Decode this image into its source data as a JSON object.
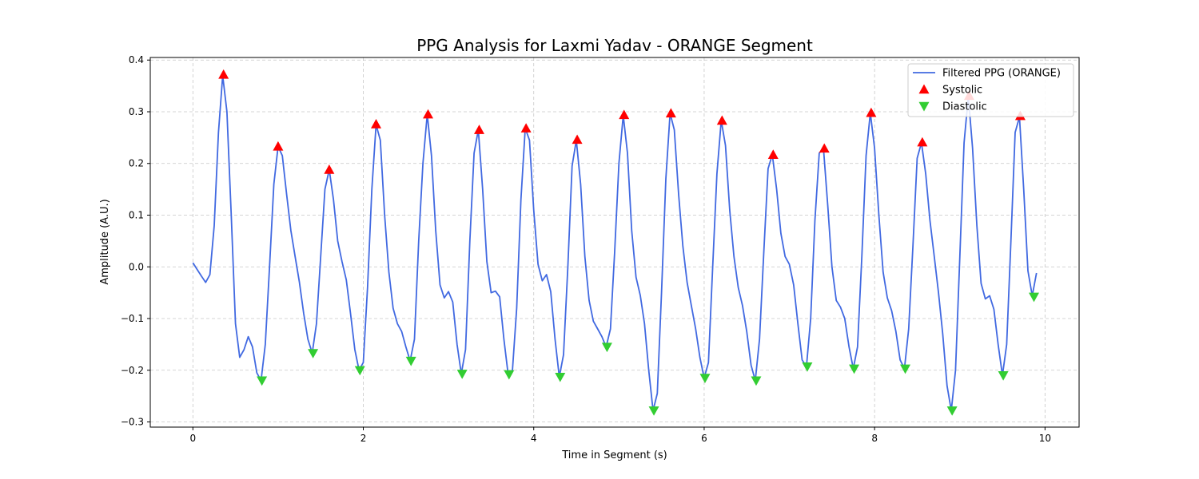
{
  "chart_data": {
    "type": "line",
    "title": "PPG Analysis for Laxmi Yadav - ORANGE Segment",
    "xlabel": "Time in Segment (s)",
    "ylabel": "Amplitude (A.U.)",
    "xlim": [
      -0.5,
      10.4
    ],
    "ylim": [
      -0.31,
      0.405
    ],
    "xticks": [
      0,
      2,
      4,
      6,
      8,
      10
    ],
    "xtick_labels": [
      "0",
      "2",
      "4",
      "6",
      "8",
      "10"
    ],
    "yticks": [
      -0.3,
      -0.2,
      -0.1,
      0.0,
      0.1,
      0.2,
      0.3,
      0.4
    ],
    "ytick_labels": [
      "−0.3",
      "−0.2",
      "−0.1",
      "0.0",
      "0.1",
      "0.2",
      "0.3",
      "0.4"
    ],
    "grid": true,
    "legend_position": "top-right",
    "colors": {
      "line": "#4169e1",
      "systolic": "#ff0000",
      "diastolic": "#32cd32"
    },
    "series": [
      {
        "name": "Filtered PPG (ORANGE)",
        "kind": "line",
        "points": [
          [
            0.0,
            0.008
          ],
          [
            0.05,
            -0.005
          ],
          [
            0.1,
            -0.018
          ],
          [
            0.15,
            -0.03
          ],
          [
            0.2,
            -0.015
          ],
          [
            0.25,
            0.08
          ],
          [
            0.3,
            0.26
          ],
          [
            0.35,
            0.37
          ],
          [
            0.4,
            0.3
          ],
          [
            0.45,
            0.1
          ],
          [
            0.5,
            -0.11
          ],
          [
            0.55,
            -0.175
          ],
          [
            0.6,
            -0.16
          ],
          [
            0.65,
            -0.135
          ],
          [
            0.7,
            -0.155
          ],
          [
            0.75,
            -0.205
          ],
          [
            0.8,
            -0.22
          ],
          [
            0.85,
            -0.15
          ],
          [
            0.9,
            0.0
          ],
          [
            0.95,
            0.16
          ],
          [
            1.0,
            0.233
          ],
          [
            1.05,
            0.215
          ],
          [
            1.1,
            0.14
          ],
          [
            1.15,
            0.07
          ],
          [
            1.2,
            0.02
          ],
          [
            1.25,
            -0.03
          ],
          [
            1.3,
            -0.09
          ],
          [
            1.35,
            -0.14
          ],
          [
            1.4,
            -0.167
          ],
          [
            1.45,
            -0.11
          ],
          [
            1.5,
            0.02
          ],
          [
            1.55,
            0.15
          ],
          [
            1.6,
            0.188
          ],
          [
            1.65,
            0.13
          ],
          [
            1.7,
            0.05
          ],
          [
            1.75,
            0.01
          ],
          [
            1.8,
            -0.025
          ],
          [
            1.85,
            -0.09
          ],
          [
            1.9,
            -0.16
          ],
          [
            1.95,
            -0.2
          ],
          [
            2.0,
            -0.185
          ],
          [
            2.05,
            -0.04
          ],
          [
            2.1,
            0.15
          ],
          [
            2.15,
            0.275
          ],
          [
            2.2,
            0.245
          ],
          [
            2.25,
            0.1
          ],
          [
            2.3,
            -0.01
          ],
          [
            2.35,
            -0.08
          ],
          [
            2.4,
            -0.11
          ],
          [
            2.45,
            -0.125
          ],
          [
            2.5,
            -0.155
          ],
          [
            2.55,
            -0.182
          ],
          [
            2.6,
            -0.14
          ],
          [
            2.65,
            0.05
          ],
          [
            2.7,
            0.2
          ],
          [
            2.75,
            0.295
          ],
          [
            2.8,
            0.215
          ],
          [
            2.85,
            0.07
          ],
          [
            2.9,
            -0.035
          ],
          [
            2.95,
            -0.06
          ],
          [
            3.0,
            -0.048
          ],
          [
            3.05,
            -0.068
          ],
          [
            3.1,
            -0.15
          ],
          [
            3.15,
            -0.207
          ],
          [
            3.2,
            -0.16
          ],
          [
            3.25,
            0.05
          ],
          [
            3.3,
            0.22
          ],
          [
            3.35,
            0.265
          ],
          [
            3.4,
            0.15
          ],
          [
            3.45,
            0.01
          ],
          [
            3.5,
            -0.05
          ],
          [
            3.55,
            -0.047
          ],
          [
            3.6,
            -0.058
          ],
          [
            3.65,
            -0.14
          ],
          [
            3.7,
            -0.208
          ],
          [
            3.75,
            -0.2
          ],
          [
            3.8,
            -0.08
          ],
          [
            3.85,
            0.13
          ],
          [
            3.9,
            0.268
          ],
          [
            3.95,
            0.245
          ],
          [
            4.0,
            0.11
          ],
          [
            4.05,
            0.005
          ],
          [
            4.1,
            -0.027
          ],
          [
            4.15,
            -0.015
          ],
          [
            4.2,
            -0.048
          ],
          [
            4.25,
            -0.14
          ],
          [
            4.3,
            -0.213
          ],
          [
            4.35,
            -0.17
          ],
          [
            4.4,
            0.0
          ],
          [
            4.45,
            0.195
          ],
          [
            4.5,
            0.245
          ],
          [
            4.55,
            0.16
          ],
          [
            4.6,
            0.02
          ],
          [
            4.65,
            -0.065
          ],
          [
            4.7,
            -0.105
          ],
          [
            4.75,
            -0.12
          ],
          [
            4.8,
            -0.135
          ],
          [
            4.85,
            -0.155
          ],
          [
            4.9,
            -0.12
          ],
          [
            4.95,
            0.03
          ],
          [
            5.0,
            0.2
          ],
          [
            5.05,
            0.293
          ],
          [
            5.1,
            0.22
          ],
          [
            5.15,
            0.07
          ],
          [
            5.2,
            -0.02
          ],
          [
            5.25,
            -0.055
          ],
          [
            5.3,
            -0.11
          ],
          [
            5.35,
            -0.2
          ],
          [
            5.4,
            -0.278
          ],
          [
            5.45,
            -0.245
          ],
          [
            5.5,
            -0.05
          ],
          [
            5.55,
            0.17
          ],
          [
            5.6,
            0.297
          ],
          [
            5.65,
            0.265
          ],
          [
            5.7,
            0.14
          ],
          [
            5.75,
            0.04
          ],
          [
            5.8,
            -0.03
          ],
          [
            5.85,
            -0.075
          ],
          [
            5.9,
            -0.12
          ],
          [
            5.95,
            -0.175
          ],
          [
            6.0,
            -0.215
          ],
          [
            6.05,
            -0.185
          ],
          [
            6.1,
            0.0
          ],
          [
            6.15,
            0.18
          ],
          [
            6.2,
            0.283
          ],
          [
            6.25,
            0.235
          ],
          [
            6.3,
            0.11
          ],
          [
            6.35,
            0.02
          ],
          [
            6.4,
            -0.04
          ],
          [
            6.45,
            -0.075
          ],
          [
            6.5,
            -0.125
          ],
          [
            6.55,
            -0.19
          ],
          [
            6.6,
            -0.22
          ],
          [
            6.65,
            -0.14
          ],
          [
            6.7,
            0.03
          ],
          [
            6.75,
            0.19
          ],
          [
            6.8,
            0.217
          ],
          [
            6.85,
            0.15
          ],
          [
            6.9,
            0.065
          ],
          [
            6.95,
            0.02
          ],
          [
            7.0,
            0.005
          ],
          [
            7.05,
            -0.035
          ],
          [
            7.1,
            -0.11
          ],
          [
            7.15,
            -0.18
          ],
          [
            7.2,
            -0.193
          ],
          [
            7.25,
            -0.1
          ],
          [
            7.3,
            0.09
          ],
          [
            7.35,
            0.22
          ],
          [
            7.4,
            0.229
          ],
          [
            7.45,
            0.12
          ],
          [
            7.5,
            0.0
          ],
          [
            7.55,
            -0.065
          ],
          [
            7.6,
            -0.078
          ],
          [
            7.65,
            -0.1
          ],
          [
            7.7,
            -0.155
          ],
          [
            7.75,
            -0.197
          ],
          [
            7.8,
            -0.155
          ],
          [
            7.85,
            0.02
          ],
          [
            7.9,
            0.215
          ],
          [
            7.95,
            0.298
          ],
          [
            8.0,
            0.23
          ],
          [
            8.05,
            0.1
          ],
          [
            8.1,
            -0.01
          ],
          [
            8.15,
            -0.06
          ],
          [
            8.2,
            -0.085
          ],
          [
            8.25,
            -0.125
          ],
          [
            8.3,
            -0.18
          ],
          [
            8.35,
            -0.197
          ],
          [
            8.4,
            -0.12
          ],
          [
            8.45,
            0.04
          ],
          [
            8.5,
            0.21
          ],
          [
            8.55,
            0.24
          ],
          [
            8.6,
            0.18
          ],
          [
            8.65,
            0.09
          ],
          [
            8.7,
            0.02
          ],
          [
            8.75,
            -0.05
          ],
          [
            8.8,
            -0.13
          ],
          [
            8.85,
            -0.23
          ],
          [
            8.9,
            -0.278
          ],
          [
            8.95,
            -0.2
          ],
          [
            9.0,
            0.02
          ],
          [
            9.05,
            0.24
          ],
          [
            9.1,
            0.33
          ],
          [
            9.15,
            0.23
          ],
          [
            9.2,
            0.08
          ],
          [
            9.25,
            -0.032
          ],
          [
            9.3,
            -0.062
          ],
          [
            9.35,
            -0.056
          ],
          [
            9.4,
            -0.082
          ],
          [
            9.45,
            -0.15
          ],
          [
            9.5,
            -0.21
          ],
          [
            9.55,
            -0.15
          ],
          [
            9.6,
            0.05
          ],
          [
            9.65,
            0.26
          ],
          [
            9.7,
            0.29
          ],
          [
            9.75,
            0.15
          ],
          [
            9.8,
            -0.008
          ],
          [
            9.85,
            -0.056
          ],
          [
            9.9,
            -0.012
          ]
        ]
      },
      {
        "name": "Systolic",
        "kind": "markers",
        "marker": "triangle-up",
        "points": [
          [
            0.36,
            0.372
          ],
          [
            1.0,
            0.233
          ],
          [
            1.6,
            0.188
          ],
          [
            2.15,
            0.276
          ],
          [
            2.76,
            0.295
          ],
          [
            3.36,
            0.265
          ],
          [
            3.91,
            0.268
          ],
          [
            4.51,
            0.246
          ],
          [
            5.06,
            0.294
          ],
          [
            5.61,
            0.297
          ],
          [
            6.21,
            0.283
          ],
          [
            6.81,
            0.217
          ],
          [
            7.41,
            0.229
          ],
          [
            7.96,
            0.298
          ],
          [
            8.56,
            0.241
          ],
          [
            9.11,
            0.331
          ],
          [
            9.71,
            0.292
          ]
        ]
      },
      {
        "name": "Diastolic",
        "kind": "markers",
        "marker": "triangle-down",
        "points": [
          [
            0.81,
            -0.22
          ],
          [
            1.41,
            -0.167
          ],
          [
            1.96,
            -0.2
          ],
          [
            2.56,
            -0.182
          ],
          [
            3.16,
            -0.207
          ],
          [
            3.71,
            -0.208
          ],
          [
            4.31,
            -0.213
          ],
          [
            4.86,
            -0.155
          ],
          [
            5.41,
            -0.278
          ],
          [
            6.01,
            -0.215
          ],
          [
            6.61,
            -0.22
          ],
          [
            7.21,
            -0.193
          ],
          [
            7.76,
            -0.197
          ],
          [
            8.36,
            -0.197
          ],
          [
            8.91,
            -0.278
          ],
          [
            9.51,
            -0.21
          ],
          [
            9.87,
            -0.058
          ]
        ]
      }
    ]
  }
}
